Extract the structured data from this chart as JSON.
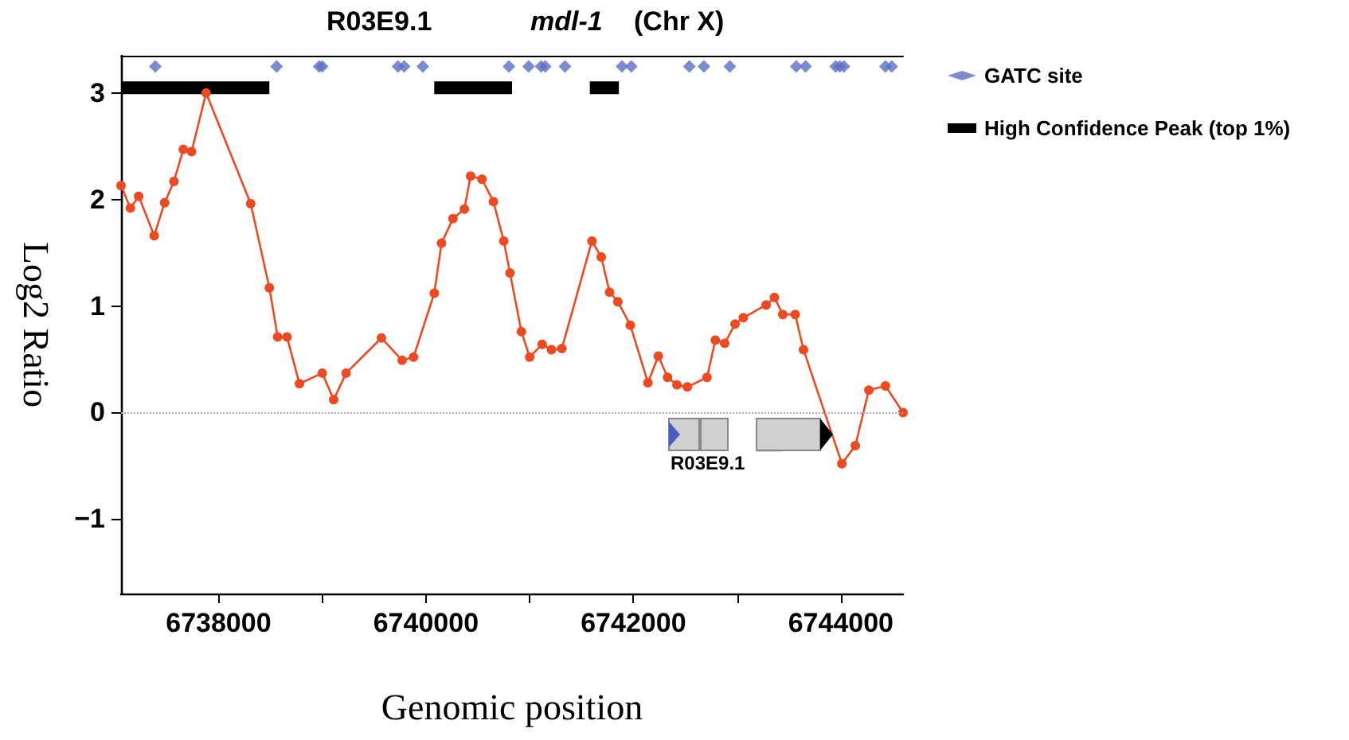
{
  "chart_data": {
    "type": "line",
    "xlabel": "Genomic position",
    "ylabel": "Log2 Ratio",
    "annotations": [
      "R03E9.1",
      "mdl-1",
      "(Chr X)",
      "R03E9.1"
    ],
    "xlim": [
      6737060,
      6744600
    ],
    "xticks": [
      6738000,
      {
        "value": 6739000,
        "label": null
      },
      6740000,
      {
        "value": 6741000,
        "label": null
      },
      6742000,
      {
        "value": 6743000,
        "label": null
      },
      6744000
    ],
    "ylim": [
      -1.7,
      3.35
    ],
    "yticks": [
      -1,
      0,
      1,
      2,
      3
    ],
    "grid": false,
    "legend": "right",
    "line_style": "solid",
    "ref_lines": [
      {
        "axis": "y",
        "value": 0,
        "color": "#aaaaaa",
        "line_style": "dotted"
      }
    ],
    "series": [
      {
        "color": "#ee4a22",
        "marker": "circle",
        "x": [
          6737060,
          6737150,
          6737230,
          6737380,
          6737480,
          6737570,
          6737660,
          6737740,
          6737880,
          6738310,
          6738490,
          6738570,
          6738660,
          6738780,
          6739000,
          6739110,
          6739230,
          6739570,
          6739770,
          6739880,
          6740080,
          6740150,
          6740260,
          6740370,
          6740430,
          6740540,
          6740650,
          6740750,
          6740810,
          6740920,
          6741000,
          6741120,
          6741210,
          6741310,
          6741600,
          6741690,
          6741770,
          6741850,
          6741970,
          6742140,
          6742240,
          6742330,
          6742420,
          6742520,
          6742710,
          6742790,
          6742880,
          6742980,
          6743060,
          6743280,
          6743360,
          6743440,
          6743560,
          6743640,
          6744010,
          6744140,
          6744270,
          6744430,
          6744600
        ],
        "values": [
          2.13,
          1.92,
          2.03,
          1.66,
          1.97,
          2.17,
          2.47,
          2.45,
          3.0,
          1.96,
          1.17,
          0.71,
          0.71,
          0.27,
          0.37,
          0.12,
          0.37,
          0.7,
          0.49,
          0.52,
          1.12,
          1.59,
          1.82,
          1.91,
          2.22,
          2.19,
          1.98,
          1.61,
          1.31,
          0.76,
          0.52,
          0.64,
          0.59,
          0.6,
          1.61,
          1.46,
          1.13,
          1.04,
          0.82,
          0.28,
          0.53,
          0.33,
          0.26,
          0.24,
          0.33,
          0.68,
          0.65,
          0.83,
          0.89,
          1.01,
          1.08,
          0.92,
          0.92,
          0.59,
          -0.48,
          -0.31,
          0.21,
          0.25,
          0.0
        ]
      },
      {
        "name": "GATC site",
        "type": "scatter",
        "marker": "diamond",
        "color": "#5b6fc4",
        "x": [
          6737390,
          6738560,
          6738970,
          6739000,
          6739730,
          6739790,
          6739970,
          6740800,
          6740990,
          6741110,
          6741150,
          6741340,
          6741890,
          6741980,
          6742540,
          6742680,
          6742930,
          6743570,
          6743660,
          6743950,
          6743990,
          6744030,
          6744430,
          6744490
        ],
        "values": [
          3.25,
          3.25,
          3.25,
          3.25,
          3.25,
          3.25,
          3.25,
          3.25,
          3.25,
          3.25,
          3.25,
          3.25,
          3.25,
          3.25,
          3.25,
          3.25,
          3.25,
          3.25,
          3.25,
          3.25,
          3.25,
          3.25,
          3.25,
          3.25
        ]
      },
      {
        "name": "High Confidence Peak (top 1%)",
        "marker": "none",
        "color": "#000000",
        "x": [
          6737060,
          6738490,
          6739300,
          6740080,
          6740830,
          6741200,
          6741580,
          6741860
        ],
        "values": [
          3.05,
          3.05,
          null,
          3.05,
          3.05,
          null,
          3.05,
          3.05
        ]
      }
    ]
  }
}
